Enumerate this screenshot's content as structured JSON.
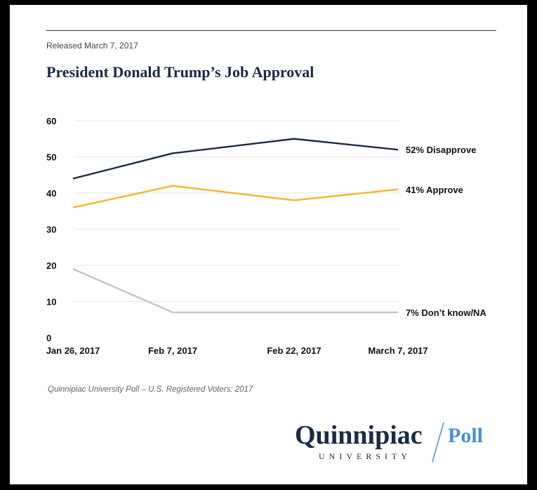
{
  "release_note": "Released March 7, 2017",
  "source_note": "Quinnipiac University Poll – U.S. Registered Voters: 2017",
  "logo": {
    "main": "Quinnipiac",
    "slash": "/",
    "poll": "Poll",
    "sub": "UNIVERSITY",
    "colors": {
      "navy": "#1b2a47",
      "blue": "#4a8fd1"
    }
  },
  "chart_data": {
    "type": "line",
    "title": "President Donald Trump’s Job Approval",
    "xlabel": "",
    "ylabel": "",
    "x": [
      "Jan 26, 2017",
      "Feb 7, 2017",
      "Feb 22, 2017",
      "March 7, 2017"
    ],
    "ylim": [
      0,
      60
    ],
    "yticks": [
      0,
      10,
      20,
      30,
      40,
      50,
      60
    ],
    "grid": true,
    "series": [
      {
        "key": "disapprove",
        "values": [
          44,
          51,
          55,
          52
        ],
        "color": "#1b2a47",
        "end_label": "52% Disapprove"
      },
      {
        "key": "approve",
        "values": [
          36,
          42,
          38,
          41
        ],
        "color": "#f2b52e",
        "end_label": "41% Approve"
      },
      {
        "key": "dont_know",
        "values": [
          19,
          7,
          7,
          7
        ],
        "color": "#c4c4c4",
        "end_label": "7% Don’t know/NA"
      }
    ]
  }
}
